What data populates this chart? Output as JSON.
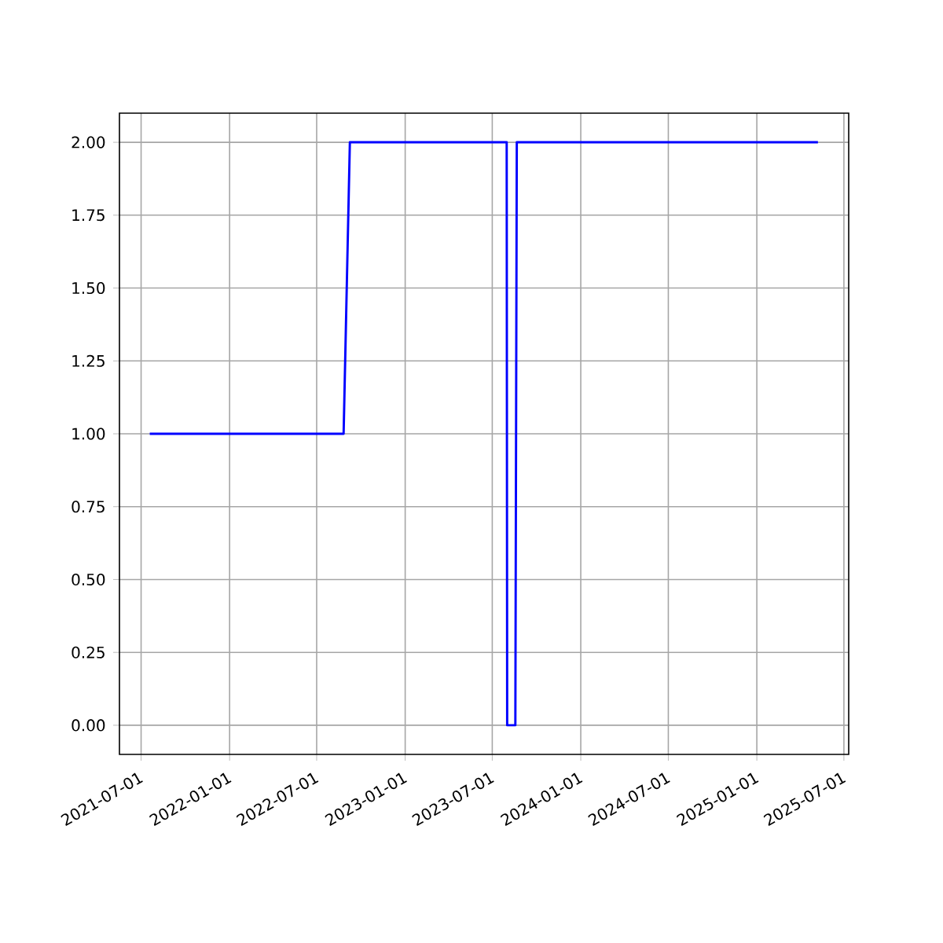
{
  "chart_data": {
    "type": "line",
    "x": [
      "2021-07-19",
      "2022-08-26",
      "2022-09-08",
      "2023-07-31",
      "2023-08-01",
      "2023-08-18",
      "2023-08-21",
      "2025-05-08"
    ],
    "values": [
      1,
      1,
      2,
      2,
      0,
      0,
      2,
      2
    ],
    "color": "#0000ff",
    "xlim": [
      "2021-05-17",
      "2025-07-11"
    ],
    "xticks": [
      "2021-07-01",
      "2022-01-01",
      "2022-07-01",
      "2023-01-01",
      "2023-07-01",
      "2024-01-01",
      "2024-07-01",
      "2025-01-01",
      "2025-07-01"
    ],
    "ylim": [
      -0.1,
      2.1
    ],
    "yticks": [
      {
        "value": 0,
        "label": "0.00"
      },
      {
        "value": 0.25,
        "label": "0.25"
      },
      {
        "value": 0.5,
        "label": "0.50"
      },
      {
        "value": 0.75,
        "label": "0.75"
      },
      {
        "value": 1,
        "label": "1.00"
      },
      {
        "value": 1.25,
        "label": "1.25"
      },
      {
        "value": 1.5,
        "label": "1.50"
      },
      {
        "value": 1.75,
        "label": "1.75"
      },
      {
        "value": 2,
        "label": "2.00"
      }
    ],
    "grid": true
  }
}
